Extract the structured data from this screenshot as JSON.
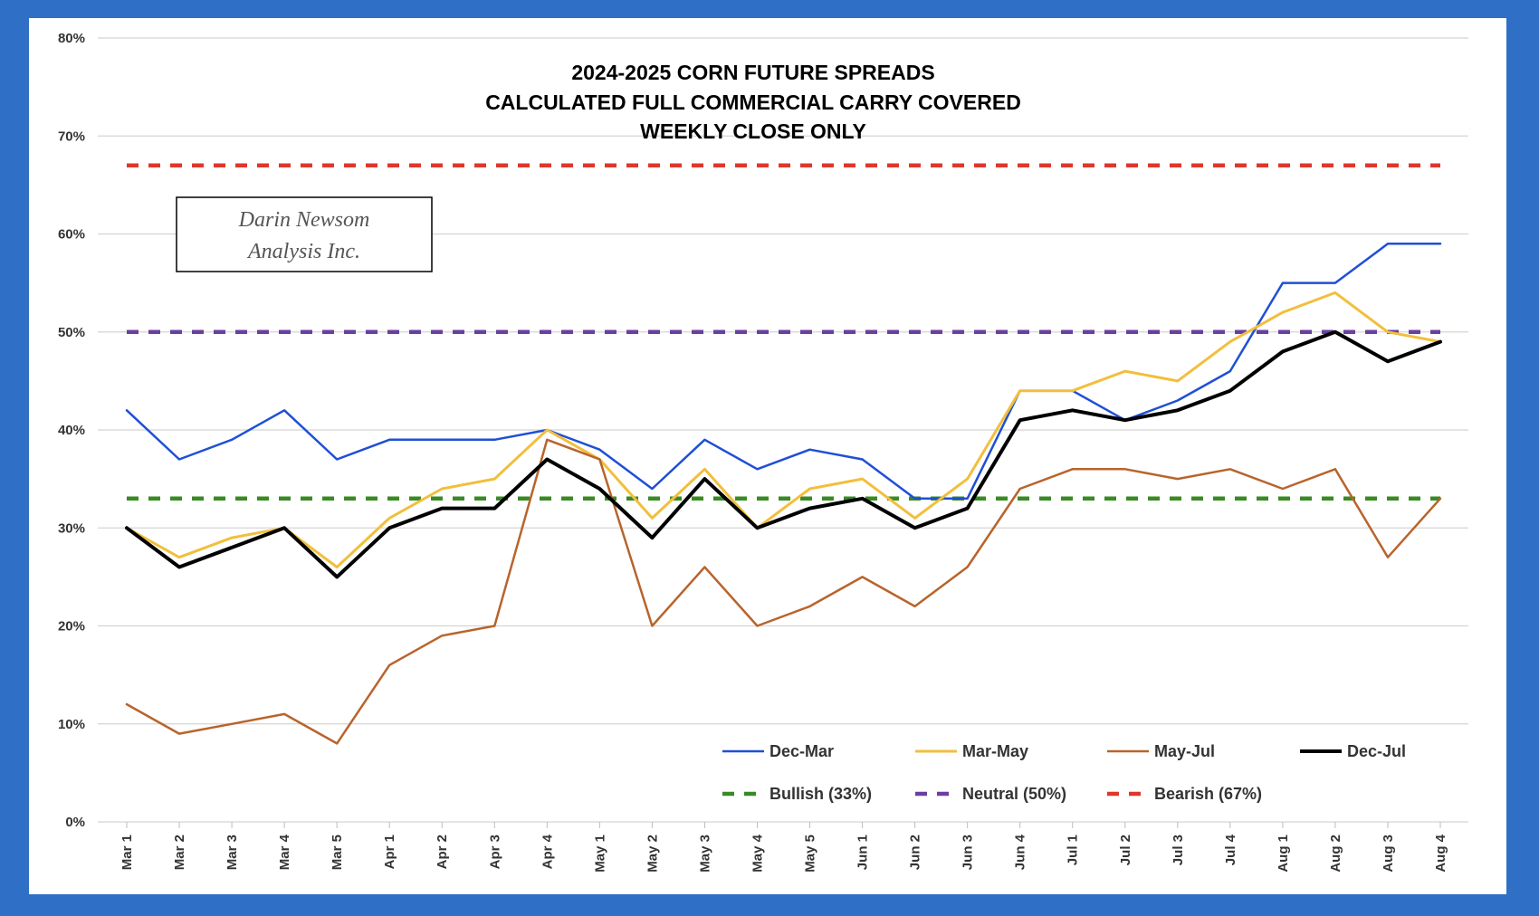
{
  "chart_data": {
    "type": "line",
    "title": [
      "2024-2025 CORN FUTURE SPREADS",
      "CALCULATED FULL COMMERCIAL CARRY COVERED",
      "WEEKLY CLOSE ONLY"
    ],
    "watermark": [
      "Darin Newsom",
      "Analysis Inc."
    ],
    "x": [
      "Mar 1",
      "Mar 2",
      "Mar 3",
      "Mar 4",
      "Mar 5",
      "Apr 1",
      "Apr 2",
      "Apr 3",
      "Apr 4",
      "May 1",
      "May 2",
      "May 3",
      "May 4",
      "May 5",
      "Jun 1",
      "Jun 2",
      "Jun 3",
      "Jun 4",
      "Jul 1",
      "Jul 2",
      "Jul 3",
      "Jul 4",
      "Aug 1",
      "Aug 2",
      "Aug 3",
      "Aug 4"
    ],
    "yticks": [
      "0%",
      "10%",
      "20%",
      "30%",
      "40%",
      "50%",
      "60%",
      "70%",
      "80%"
    ],
    "ylim": [
      0,
      80
    ],
    "grid": true,
    "series": [
      {
        "name": "Dec-Mar",
        "color": "#1f4fd6",
        "width": 2.5,
        "values": [
          42,
          37,
          39,
          42,
          37,
          39,
          39,
          39,
          40,
          38,
          34,
          39,
          36,
          38,
          37,
          33,
          33,
          44,
          44,
          41,
          43,
          46,
          55,
          55,
          59,
          59
        ]
      },
      {
        "name": "Mar-May",
        "color": "#f2bf3c",
        "width": 3,
        "values": [
          30,
          27,
          29,
          30,
          26,
          31,
          34,
          35,
          40,
          37,
          31,
          36,
          30,
          34,
          35,
          31,
          35,
          44,
          44,
          46,
          45,
          49,
          52,
          54,
          50,
          49
        ]
      },
      {
        "name": "May-Jul",
        "color": "#b8642c",
        "width": 2.5,
        "values": [
          12,
          9,
          10,
          11,
          8,
          16,
          19,
          20,
          39,
          37,
          20,
          26,
          20,
          22,
          25,
          22,
          26,
          34,
          36,
          36,
          35,
          36,
          34,
          36,
          27,
          33
        ]
      },
      {
        "name": "Dec-Jul",
        "color": "#000000",
        "width": 4,
        "values": [
          30,
          26,
          28,
          30,
          25,
          30,
          32,
          32,
          37,
          34,
          29,
          35,
          30,
          32,
          33,
          30,
          32,
          41,
          42,
          41,
          42,
          44,
          48,
          50,
          47,
          49
        ]
      }
    ],
    "reference_lines": [
      {
        "name": "Bullish (33%)",
        "value": 33,
        "color": "#3a8a24"
      },
      {
        "name": "Neutral (50%)",
        "value": 50,
        "color": "#6b3fa0"
      },
      {
        "name": "Bearish (67%)",
        "value": 67,
        "color": "#e0362b"
      }
    ],
    "legend_position": "bottom-right"
  }
}
